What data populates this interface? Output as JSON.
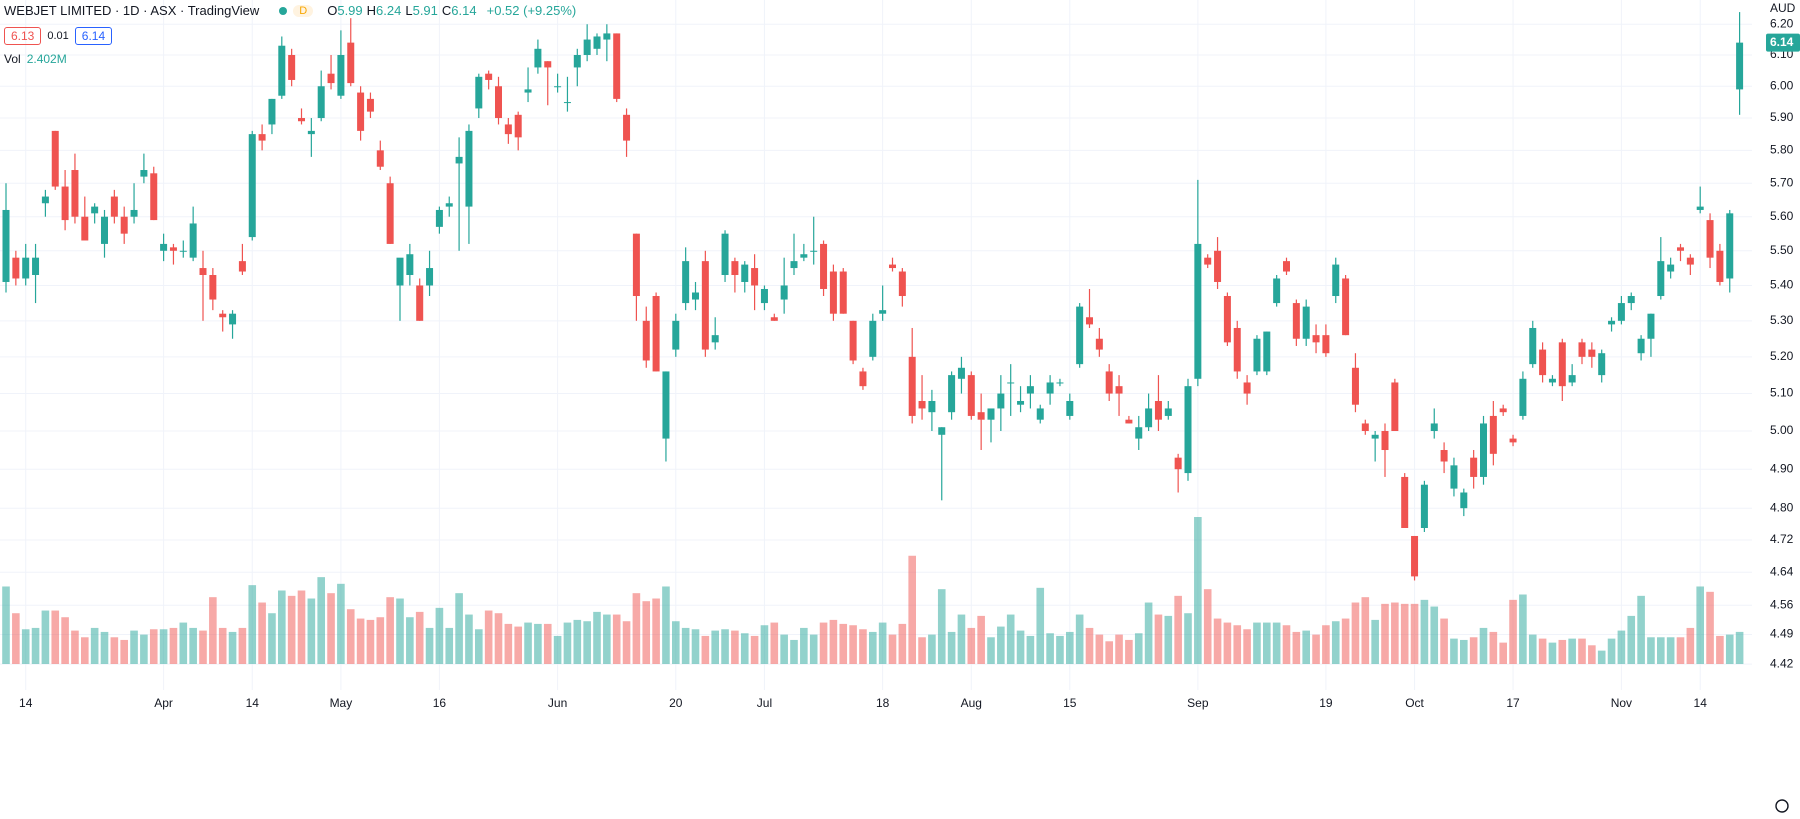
{
  "chart_data": {
    "type": "candlestick",
    "title": "WEBJET LIMITED · 1D · ASX · TradingView",
    "badge": "D",
    "ohlc": [
      {
        "key": "O",
        "value": "5.99"
      },
      {
        "key": "H",
        "value": "6.24"
      },
      {
        "key": "L",
        "value": "5.91"
      },
      {
        "key": "C",
        "value": "6.14"
      }
    ],
    "change": "+0.52 (+9.25%)",
    "bid": "6.13",
    "spread": "0.01",
    "ask": "6.14",
    "volume_name": "Vol",
    "volume_label": "2.402M",
    "currency": "AUD",
    "last_price_label": "6.14",
    "up_color": "#26a69a",
    "down_color": "#ef5350",
    "log_scale": true,
    "grid": true,
    "ylim": [
      4.36,
      6.28
    ],
    "yticks": [
      {
        "value": 6.2,
        "label": "6.20"
      },
      {
        "value": 6.1,
        "label": "6.10"
      },
      {
        "value": 6.0,
        "label": "6.00"
      },
      {
        "value": 5.9,
        "label": "5.90"
      },
      {
        "value": 5.8,
        "label": "5.80"
      },
      {
        "value": 5.7,
        "label": "5.70"
      },
      {
        "value": 5.6,
        "label": "5.60"
      },
      {
        "value": 5.5,
        "label": "5.50"
      },
      {
        "value": 5.4,
        "label": "5.40"
      },
      {
        "value": 5.3,
        "label": "5.30"
      },
      {
        "value": 5.2,
        "label": "5.20"
      },
      {
        "value": 5.1,
        "label": "5.10"
      },
      {
        "value": 5.0,
        "label": "5.00"
      },
      {
        "value": 4.9,
        "label": "4.90"
      },
      {
        "value": 4.8,
        "label": "4.80"
      },
      4.72,
      4.64,
      4.56,
      4.49,
      4.42
    ],
    "categories": [
      null,
      null,
      "14",
      null,
      null,
      null,
      null,
      null,
      null,
      null,
      null,
      null,
      null,
      null,
      null,
      null,
      "Apr",
      null,
      null,
      null,
      null,
      null,
      null,
      null,
      null,
      "14",
      null,
      null,
      null,
      null,
      null,
      null,
      null,
      null,
      "May",
      null,
      null,
      null,
      null,
      null,
      null,
      null,
      null,
      null,
      "16",
      null,
      null,
      null,
      null,
      null,
      null,
      null,
      null,
      null,
      null,
      null,
      "Jun",
      null,
      null,
      null,
      null,
      null,
      null,
      null,
      null,
      null,
      null,
      null,
      "20",
      null,
      null,
      null,
      null,
      null,
      null,
      null,
      null,
      "Jul",
      null,
      null,
      null,
      null,
      null,
      null,
      null,
      null,
      null,
      null,
      null,
      "18",
      null,
      null,
      null,
      null,
      null,
      null,
      null,
      null,
      "Aug",
      null,
      null,
      null,
      null,
      null,
      null,
      null,
      null,
      null,
      "15",
      null,
      null,
      null,
      null,
      null,
      null,
      null,
      null,
      null,
      null,
      null,
      null,
      "Sep",
      null,
      null,
      null,
      null,
      null,
      null,
      null,
      null,
      null,
      null,
      null,
      null,
      "19",
      null,
      null,
      null,
      null,
      null,
      null,
      null,
      null,
      "Oct",
      null,
      null,
      null,
      null,
      null,
      null,
      null,
      null,
      null,
      "17",
      null,
      null,
      null,
      null,
      null,
      null,
      null,
      null,
      null,
      null,
      "Nov",
      null,
      null,
      null,
      null,
      null,
      null,
      null,
      "14",
      null,
      null,
      null,
      null
    ],
    "candles": [
      [
        5.41,
        5.7,
        5.38,
        5.62
      ],
      [
        5.48,
        5.5,
        5.4,
        5.42
      ],
      [
        5.42,
        5.52,
        5.4,
        5.48
      ],
      [
        5.43,
        5.52,
        5.35,
        5.48
      ],
      [
        5.64,
        5.68,
        5.6,
        5.66
      ],
      [
        5.86,
        5.86,
        5.68,
        5.69
      ],
      [
        5.69,
        5.74,
        5.56,
        5.59
      ],
      [
        5.74,
        5.79,
        5.58,
        5.6
      ],
      [
        5.6,
        5.66,
        5.53,
        5.53
      ],
      [
        5.61,
        5.64,
        5.58,
        5.63
      ],
      [
        5.52,
        5.62,
        5.48,
        5.6
      ],
      [
        5.66,
        5.68,
        5.58,
        5.6
      ],
      [
        5.6,
        5.63,
        5.52,
        5.55
      ],
      [
        5.6,
        5.7,
        5.58,
        5.62
      ],
      [
        5.72,
        5.79,
        5.7,
        5.74
      ],
      [
        5.73,
        5.75,
        5.59,
        5.59
      ],
      [
        5.5,
        5.55,
        5.47,
        5.52
      ],
      [
        5.51,
        5.52,
        5.46,
        5.5
      ],
      [
        5.5,
        5.53,
        5.48,
        5.5
      ],
      [
        5.48,
        5.63,
        5.47,
        5.58
      ],
      [
        5.45,
        5.5,
        5.3,
        5.43
      ],
      [
        5.43,
        5.45,
        5.33,
        5.36
      ],
      [
        5.32,
        5.33,
        5.27,
        5.31
      ],
      [
        5.29,
        5.33,
        5.25,
        5.32
      ],
      [
        5.47,
        5.52,
        5.43,
        5.44
      ],
      [
        5.54,
        5.86,
        5.53,
        5.85
      ],
      [
        5.85,
        5.88,
        5.8,
        5.83
      ],
      [
        5.88,
        5.96,
        5.85,
        5.96
      ],
      [
        5.97,
        6.16,
        5.96,
        6.13
      ],
      [
        6.1,
        6.12,
        6.0,
        6.02
      ],
      [
        5.9,
        5.93,
        5.88,
        5.89
      ],
      [
        5.85,
        5.9,
        5.78,
        5.86
      ],
      [
        5.9,
        6.05,
        5.89,
        6.0
      ],
      [
        6.04,
        6.1,
        5.99,
        6.01
      ],
      [
        5.97,
        6.18,
        5.96,
        6.1
      ],
      [
        6.14,
        6.22,
        6.0,
        6.01
      ],
      [
        5.98,
        6.0,
        5.83,
        5.86
      ],
      [
        5.96,
        5.98,
        5.9,
        5.92
      ],
      [
        5.8,
        5.83,
        5.74,
        5.75
      ],
      [
        5.7,
        5.72,
        5.52,
        5.52
      ],
      [
        5.4,
        5.47,
        5.3,
        5.48
      ],
      [
        5.43,
        5.52,
        5.4,
        5.49
      ],
      [
        5.4,
        5.42,
        5.3,
        5.3
      ],
      [
        5.4,
        5.5,
        5.37,
        5.45
      ],
      [
        5.57,
        5.63,
        5.55,
        5.62
      ],
      [
        5.63,
        5.66,
        5.6,
        5.64
      ],
      [
        5.76,
        5.84,
        5.5,
        5.78
      ],
      [
        5.63,
        5.88,
        5.52,
        5.86
      ],
      [
        5.93,
        6.04,
        5.9,
        6.03
      ],
      [
        6.04,
        6.05,
        5.99,
        6.02
      ],
      [
        6.0,
        6.03,
        5.88,
        5.9
      ],
      [
        5.88,
        5.9,
        5.82,
        5.85
      ],
      [
        5.91,
        5.92,
        5.8,
        5.84
      ],
      [
        5.98,
        6.06,
        5.95,
        5.99
      ],
      [
        6.06,
        6.15,
        6.04,
        6.12
      ],
      [
        6.08,
        6.08,
        5.94,
        6.06
      ],
      [
        6.0,
        6.04,
        5.98,
        6.0
      ],
      [
        5.95,
        6.03,
        5.92,
        5.95
      ],
      [
        6.06,
        6.12,
        6.0,
        6.1
      ],
      [
        6.1,
        6.2,
        6.08,
        6.15
      ],
      [
        6.12,
        6.17,
        6.1,
        6.16
      ],
      [
        6.15,
        6.2,
        6.08,
        6.17
      ],
      [
        6.17,
        6.17,
        5.95,
        5.96
      ],
      [
        5.91,
        5.93,
        5.78,
        5.83
      ],
      [
        5.55,
        5.55,
        5.3,
        5.37
      ],
      [
        5.3,
        5.34,
        5.17,
        5.19
      ],
      [
        5.37,
        5.38,
        5.16,
        5.16
      ],
      [
        4.98,
        5.16,
        4.92,
        5.16
      ],
      [
        5.22,
        5.32,
        5.2,
        5.3
      ],
      [
        5.35,
        5.51,
        5.33,
        5.47
      ],
      [
        5.36,
        5.41,
        5.33,
        5.38
      ],
      [
        5.47,
        5.5,
        5.2,
        5.22
      ],
      [
        5.24,
        5.31,
        5.22,
        5.26
      ],
      [
        5.43,
        5.56,
        5.41,
        5.55
      ],
      [
        5.47,
        5.48,
        5.38,
        5.43
      ],
      [
        5.41,
        5.47,
        5.38,
        5.46
      ],
      [
        5.45,
        5.49,
        5.33,
        5.4
      ],
      [
        5.35,
        5.4,
        5.33,
        5.39
      ],
      [
        5.31,
        5.32,
        5.3,
        5.3
      ],
      [
        5.36,
        5.48,
        5.32,
        5.4
      ],
      [
        5.45,
        5.55,
        5.43,
        5.47
      ],
      [
        5.48,
        5.52,
        5.47,
        5.49
      ],
      [
        5.5,
        5.6,
        5.46,
        5.5
      ],
      [
        5.52,
        5.53,
        5.37,
        5.39
      ],
      [
        5.44,
        5.46,
        5.3,
        5.32
      ],
      [
        5.44,
        5.45,
        5.32,
        5.32
      ],
      [
        5.3,
        5.3,
        5.18,
        5.19
      ],
      [
        5.16,
        5.17,
        5.11,
        5.12
      ],
      [
        5.2,
        5.32,
        5.19,
        5.3
      ],
      [
        5.32,
        5.4,
        5.3,
        5.33
      ],
      [
        5.46,
        5.48,
        5.44,
        5.45
      ],
      [
        5.44,
        5.45,
        5.34,
        5.37
      ],
      [
        5.2,
        5.28,
        5.02,
        5.04
      ],
      [
        5.08,
        5.15,
        5.03,
        5.06
      ],
      [
        5.05,
        5.11,
        5.0,
        5.08
      ],
      [
        4.99,
        5.01,
        4.82,
        5.01
      ],
      [
        5.05,
        5.16,
        5.03,
        5.15
      ],
      [
        5.14,
        5.2,
        5.1,
        5.17
      ],
      [
        5.15,
        5.16,
        5.03,
        5.04
      ],
      [
        5.05,
        5.1,
        4.95,
        5.03
      ],
      [
        5.03,
        5.05,
        4.97,
        5.06
      ],
      [
        5.06,
        5.15,
        5.0,
        5.1
      ],
      [
        5.13,
        5.18,
        5.04,
        5.13
      ],
      [
        5.07,
        5.12,
        5.05,
        5.08
      ],
      [
        5.1,
        5.15,
        5.06,
        5.12
      ],
      [
        5.03,
        5.07,
        5.02,
        5.06
      ],
      [
        5.1,
        5.15,
        5.07,
        5.13
      ],
      [
        5.13,
        5.14,
        5.12,
        5.13
      ],
      [
        5.04,
        5.1,
        5.03,
        5.08
      ],
      [
        5.18,
        5.35,
        5.17,
        5.34
      ],
      [
        5.31,
        5.39,
        5.28,
        5.29
      ],
      [
        5.25,
        5.28,
        5.2,
        5.22
      ],
      [
        5.16,
        5.18,
        5.08,
        5.1
      ],
      [
        5.12,
        5.15,
        5.04,
        5.1
      ],
      [
        5.03,
        5.04,
        5.02,
        5.02
      ],
      [
        4.98,
        5.04,
        4.95,
        5.01
      ],
      [
        5.01,
        5.1,
        5.0,
        5.06
      ],
      [
        5.08,
        5.15,
        5.0,
        5.03
      ],
      [
        5.04,
        5.08,
        5.03,
        5.06
      ],
      [
        4.93,
        4.94,
        4.84,
        4.9
      ],
      [
        4.89,
        5.14,
        4.87,
        5.12
      ],
      [
        5.14,
        5.71,
        5.12,
        5.52
      ],
      [
        5.48,
        5.49,
        5.45,
        5.46
      ],
      [
        5.5,
        5.54,
        5.39,
        5.41
      ],
      [
        5.37,
        5.38,
        5.23,
        5.24
      ],
      [
        5.28,
        5.3,
        5.14,
        5.16
      ],
      [
        5.13,
        5.15,
        5.07,
        5.1
      ],
      [
        5.16,
        5.26,
        5.15,
        5.25
      ],
      [
        5.16,
        5.27,
        5.15,
        5.27
      ],
      [
        5.35,
        5.43,
        5.34,
        5.42
      ],
      [
        5.47,
        5.48,
        5.43,
        5.44
      ],
      [
        5.35,
        5.36,
        5.23,
        5.25
      ],
      [
        5.25,
        5.36,
        5.23,
        5.34
      ],
      [
        5.26,
        5.29,
        5.21,
        5.24
      ],
      [
        5.26,
        5.29,
        5.2,
        5.21
      ],
      [
        5.37,
        5.48,
        5.35,
        5.46
      ],
      [
        5.42,
        5.43,
        5.26,
        5.26
      ],
      [
        5.17,
        5.21,
        5.05,
        5.07
      ],
      [
        5.02,
        5.03,
        4.99,
        5.0
      ],
      [
        4.98,
        5.0,
        4.92,
        4.99
      ],
      [
        5.0,
        5.02,
        4.88,
        4.95
      ],
      [
        5.13,
        5.14,
        5.0,
        5.0
      ],
      [
        4.88,
        4.89,
        4.75,
        4.75
      ],
      [
        4.73,
        4.73,
        4.62,
        4.63
      ],
      [
        4.75,
        4.87,
        4.74,
        4.86
      ],
      [
        5.0,
        5.06,
        4.98,
        5.02
      ],
      [
        4.95,
        4.97,
        4.89,
        4.92
      ],
      [
        4.85,
        4.93,
        4.83,
        4.91
      ],
      [
        4.8,
        4.85,
        4.78,
        4.84
      ],
      [
        4.93,
        4.95,
        4.85,
        4.88
      ],
      [
        4.88,
        5.04,
        4.86,
        5.02
      ],
      [
        5.04,
        5.08,
        4.91,
        4.94
      ],
      [
        5.06,
        5.07,
        5.04,
        5.05
      ],
      [
        4.98,
        4.99,
        4.96,
        4.97
      ],
      [
        5.04,
        5.16,
        5.03,
        5.14
      ],
      [
        5.18,
        5.3,
        5.17,
        5.28
      ],
      [
        5.22,
        5.24,
        5.13,
        5.15
      ],
      [
        5.13,
        5.15,
        5.12,
        5.14
      ],
      [
        5.24,
        5.25,
        5.08,
        5.12
      ],
      [
        5.13,
        5.18,
        5.12,
        5.15
      ],
      [
        5.24,
        5.25,
        5.18,
        5.2
      ],
      [
        5.22,
        5.24,
        5.17,
        5.2
      ],
      [
        5.15,
        5.22,
        5.13,
        5.21
      ],
      [
        5.29,
        5.31,
        5.27,
        5.3
      ],
      [
        5.3,
        5.37,
        5.29,
        5.35
      ],
      [
        5.35,
        5.38,
        5.33,
        5.37
      ],
      [
        5.21,
        5.26,
        5.19,
        5.25
      ],
      [
        5.25,
        5.32,
        5.2,
        5.32
      ],
      [
        5.37,
        5.54,
        5.36,
        5.47
      ],
      [
        5.44,
        5.48,
        5.42,
        5.46
      ],
      [
        5.51,
        5.52,
        5.47,
        5.5
      ],
      [
        5.48,
        5.49,
        5.43,
        5.46
      ],
      [
        5.62,
        5.69,
        5.61,
        5.63
      ],
      [
        5.59,
        5.61,
        5.45,
        5.48
      ],
      [
        5.5,
        5.52,
        5.4,
        5.41
      ],
      [
        5.42,
        5.62,
        5.38,
        5.61
      ],
      [
        5.99,
        6.24,
        5.91,
        6.14
      ]
    ],
    "volume": [
      5.8,
      3.8,
      2.6,
      2.7,
      4.0,
      4.0,
      3.5,
      2.5,
      2.0,
      2.7,
      2.4,
      2.0,
      1.8,
      2.5,
      2.2,
      2.6,
      2.6,
      2.7,
      3.1,
      2.7,
      2.5,
      5.0,
      2.7,
      2.4,
      2.7,
      5.9,
      4.6,
      3.8,
      5.5,
      5.1,
      5.5,
      4.9,
      6.5,
      5.3,
      6.0,
      4.1,
      3.4,
      3.3,
      3.5,
      5.0,
      4.9,
      3.5,
      3.9,
      2.7,
      4.2,
      2.7,
      5.3,
      3.7,
      2.6,
      4.0,
      3.8,
      3.0,
      2.8,
      3.1,
      3.0,
      3.0,
      2.1,
      3.1,
      3.3,
      3.2,
      3.9,
      3.7,
      3.7,
      3.2,
      5.3,
      4.7,
      4.9,
      5.8,
      3.2,
      2.7,
      2.6,
      2.1,
      2.5,
      2.6,
      2.5,
      2.3,
      2.1,
      2.9,
      3.1,
      2.2,
      1.8,
      2.7,
      2.2,
      3.1,
      3.3,
      3.0,
      2.9,
      2.6,
      2.4,
      3.1,
      2.2,
      3.0,
      8.1,
      2.0,
      2.2,
      5.6,
      2.4,
      3.7,
      2.7,
      3.6,
      2.0,
      2.8,
      3.7,
      2.5,
      2.1,
      5.7,
      2.3,
      2.1,
      2.4,
      3.7,
      2.7,
      2.2,
      1.7,
      2.2,
      1.8,
      2.3,
      4.6,
      3.7,
      3.6,
      5.1,
      3.8,
      11.0,
      5.6,
      3.4,
      3.1,
      2.9,
      2.6,
      3.1,
      3.1,
      3.1,
      2.9,
      2.4,
      2.5,
      2.2,
      2.9,
      3.2,
      3.4,
      4.6,
      5.0,
      3.3,
      4.5,
      4.6,
      4.5,
      4.5,
      4.8,
      4.3,
      3.4,
      1.9,
      1.8,
      2.0,
      2.7,
      2.4,
      1.6,
      4.8,
      5.2,
      2.2,
      1.9,
      1.6,
      1.8,
      1.9,
      1.9,
      1.4,
      1.0,
      1.9,
      2.5,
      3.6,
      5.1,
      2.0,
      2.0,
      2.0,
      2.0,
      2.7,
      5.8,
      5.4,
      2.1,
      2.2,
      2.402
    ]
  }
}
